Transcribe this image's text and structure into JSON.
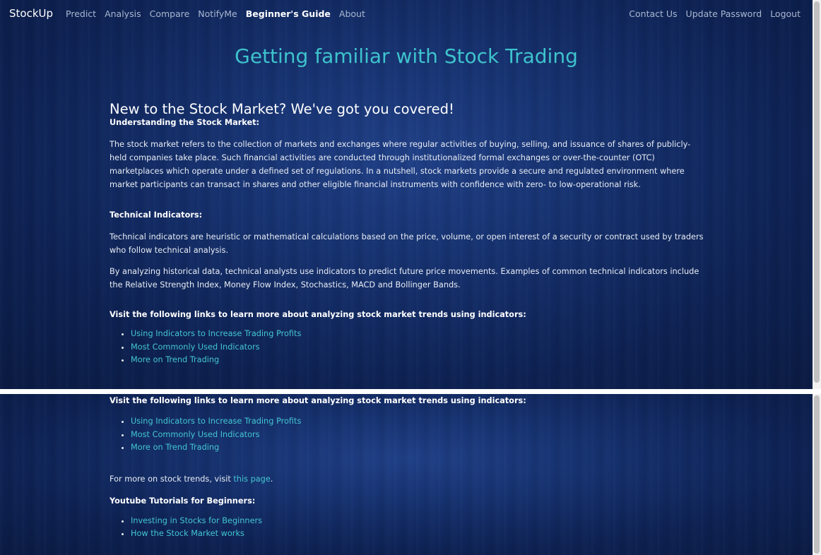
{
  "nav": {
    "brand": "StockUp",
    "left_links": [
      {
        "label": "Predict",
        "active": false
      },
      {
        "label": "Analysis",
        "active": false
      },
      {
        "label": "Compare",
        "active": false
      },
      {
        "label": "NotifyMe",
        "active": false
      },
      {
        "label": "Beginner's Guide",
        "active": true
      },
      {
        "label": "About",
        "active": false
      }
    ],
    "right_links": [
      {
        "label": "Contact Us"
      },
      {
        "label": "Update Password"
      },
      {
        "label": "Logout"
      }
    ]
  },
  "page": {
    "title": "Getting familiar with Stock Trading",
    "subtitle": "New to the Stock Market? We've got you covered!",
    "understanding_heading": "Understanding the Stock Market:",
    "understanding_text": "The stock market refers to the collection of markets and exchanges where regular activities of buying, selling, and issuance of shares of publicly-held companies take place. Such financial activities are conducted through institutionalized formal exchanges or over-the-counter (OTC) marketplaces which operate under a defined set of regulations. In a nutshell, stock markets provide a secure and regulated environment where market participants can transact in shares and other eligible financial instruments with confidence with zero- to low-operational risk.",
    "technical_heading": "Technical Indicators:",
    "technical_text_1": "Technical indicators are heuristic or mathematical calculations based on the price, volume, or open interest of a security or contract used by traders who follow technical analysis.",
    "technical_text_2": "By analyzing historical data, technical analysts use indicators to predict future price movements. Examples of common technical indicators include the Relative Strength Index, Money Flow Index, Stochastics, MACD and Bollinger Bands.",
    "links_heading": "Visit the following links to learn more about analyzing stock market trends using indicators:",
    "indicator_links": [
      "Using Indicators to Increase Trading Profits",
      "Most Commonly Used Indicators",
      "More on Trend Trading"
    ],
    "more_trends_prefix": "For more on stock trends, visit ",
    "more_trends_link": "this page",
    "more_trends_suffix": ".",
    "youtube_heading": "Youtube Tutorials for Beginners:",
    "youtube_links": [
      "Investing in Stocks for Beginners",
      "How the Stock Market works"
    ]
  },
  "colors": {
    "accent": "#3ec3cc",
    "link": "#43c6d2",
    "background": "#12296a"
  }
}
